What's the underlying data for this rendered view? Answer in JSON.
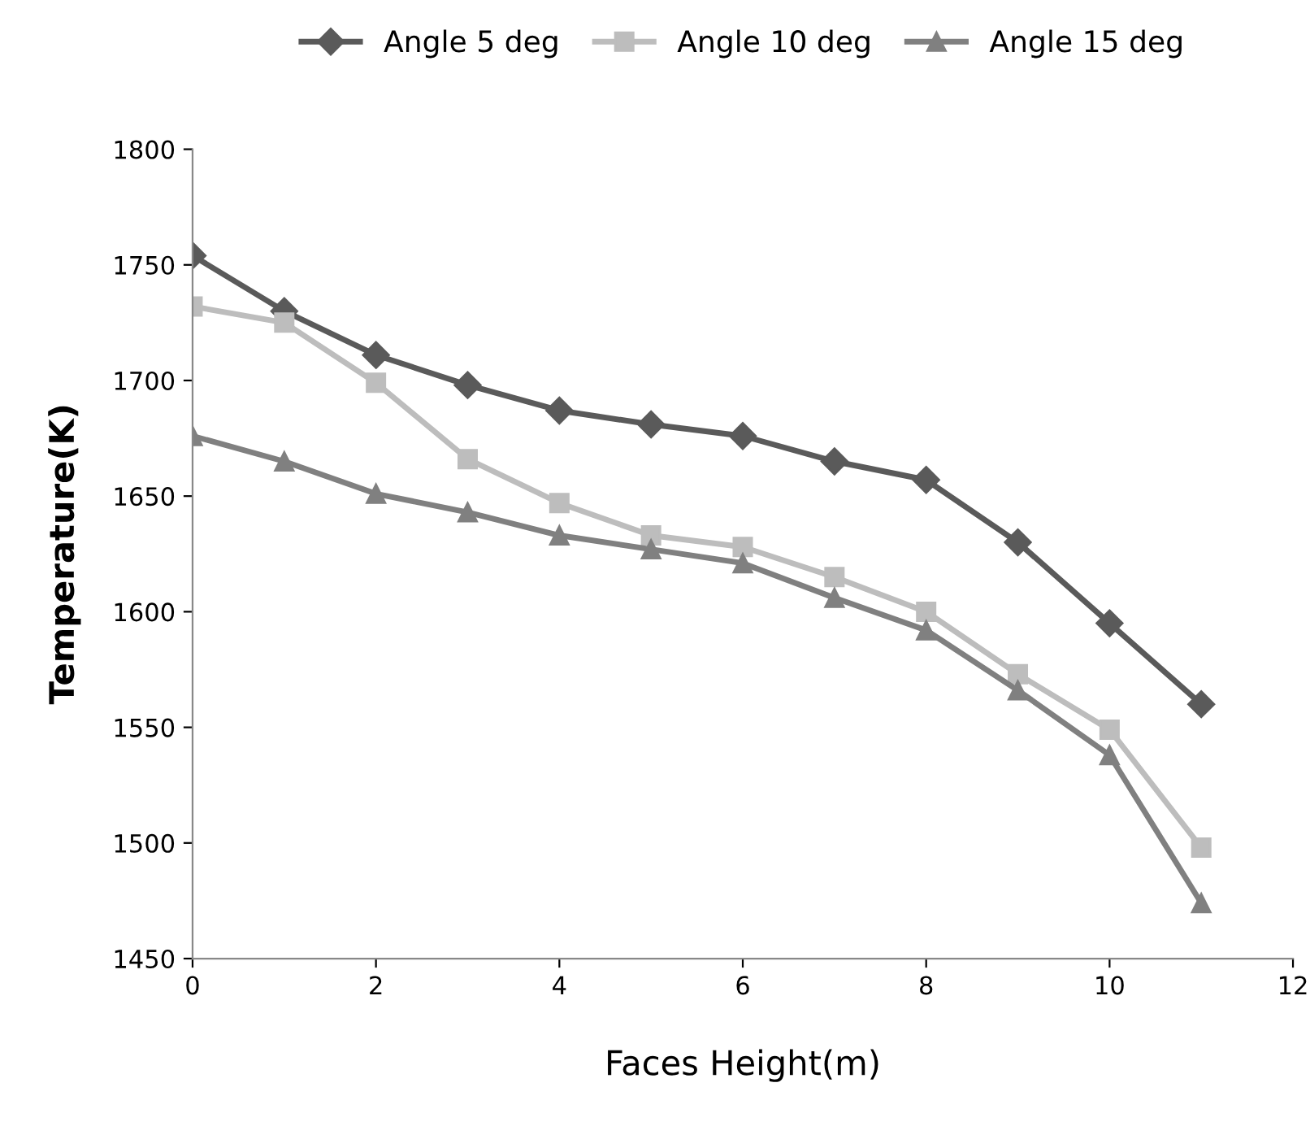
{
  "chart_data": {
    "type": "line",
    "xlabel": "Faces Height(m)",
    "ylabel": "Temperature(K)",
    "x": [
      0,
      1,
      2,
      3,
      4,
      5,
      6,
      7,
      8,
      9,
      10,
      11
    ],
    "series": [
      {
        "name": "Angle 5 deg",
        "color": "#5a5a5a",
        "marker": "diamond",
        "values": [
          1754,
          1730,
          1711,
          1698,
          1687,
          1681,
          1676,
          1665,
          1657,
          1630,
          1595,
          1560
        ]
      },
      {
        "name": "Angle 10 deg",
        "color": "#bdbdbd",
        "marker": "square",
        "values": [
          1732,
          1725,
          1699,
          1666,
          1647,
          1633,
          1628,
          1615,
          1600,
          1573,
          1549,
          1498
        ]
      },
      {
        "name": "Angle 15 deg",
        "color": "#808080",
        "marker": "triangle",
        "values": [
          1676,
          1665,
          1651,
          1643,
          1633,
          1627,
          1621,
          1606,
          1592,
          1566,
          1538,
          1474
        ]
      }
    ],
    "xlim": [
      0,
      12
    ],
    "xticks": [
      0,
      2,
      4,
      6,
      8,
      10,
      12
    ],
    "ylim": [
      1450,
      1800
    ],
    "yticks": [
      1450,
      1500,
      1550,
      1600,
      1650,
      1700,
      1750,
      1800
    ],
    "grid": false,
    "legend": "top",
    "line_style": "solid"
  }
}
